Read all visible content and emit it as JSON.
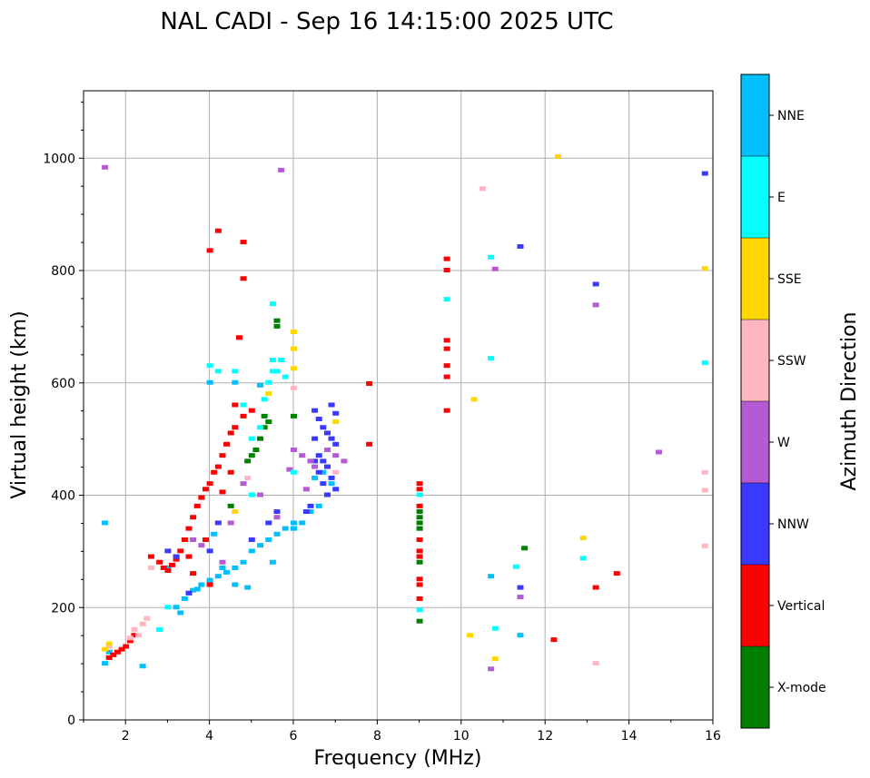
{
  "chart_data": {
    "type": "scatter",
    "title": "NAL CADI - Sep 16 14:15:00 2025 UTC",
    "xlabel": "Frequency (MHz)",
    "ylabel": "Virtual height (km)",
    "xlim": [
      1,
      16
    ],
    "ylim": [
      0,
      1120
    ],
    "xticks": [
      2,
      4,
      6,
      8,
      10,
      12,
      14,
      16
    ],
    "yticks": [
      0,
      200,
      400,
      600,
      800,
      1000
    ],
    "grid": true,
    "colorbar": {
      "label": "Azimuth Direction",
      "categories": [
        "X-mode",
        "Vertical",
        "NNW",
        "W",
        "SSW",
        "SSE",
        "E",
        "NNE"
      ],
      "colors": [
        "#008000",
        "#ff0000",
        "#3a3aff",
        "#b45ad2",
        "#ffb6c1",
        "#ffd700",
        "#00ffff",
        "#00bfff"
      ]
    },
    "series": [
      {
        "name": "NNE",
        "color": "#00bfff",
        "points": [
          [
            1.5,
            350
          ],
          [
            1.5,
            100
          ],
          [
            3.3,
            190
          ],
          [
            3.4,
            215
          ],
          [
            3.5,
            225
          ],
          [
            3.6,
            230
          ],
          [
            3.7,
            232
          ],
          [
            3.8,
            240
          ],
          [
            4.0,
            248
          ],
          [
            4.2,
            255
          ],
          [
            4.4,
            262
          ],
          [
            4.6,
            270
          ],
          [
            4.8,
            280
          ],
          [
            5.0,
            300
          ],
          [
            5.2,
            310
          ],
          [
            5.4,
            320
          ],
          [
            5.6,
            330
          ],
          [
            5.8,
            340
          ],
          [
            6.0,
            340
          ],
          [
            6.2,
            350
          ],
          [
            6.4,
            370
          ],
          [
            6.6,
            380
          ],
          [
            6.5,
            430
          ],
          [
            6.7,
            440
          ],
          [
            6.9,
            420
          ],
          [
            3.2,
            200
          ],
          [
            3.0,
            270
          ],
          [
            4.0,
            600
          ],
          [
            4.1,
            330
          ],
          [
            4.3,
            270
          ],
          [
            4.6,
            240
          ],
          [
            4.9,
            235
          ],
          [
            5.5,
            280
          ],
          [
            6.0,
            350
          ],
          [
            10.7,
            255
          ],
          [
            11.4,
            150
          ],
          [
            4.6,
            600
          ],
          [
            5.2,
            595
          ],
          [
            2.4,
            95
          ],
          [
            1.6,
            120
          ]
        ]
      },
      {
        "name": "Vertical",
        "color": "#ff0000",
        "points": [
          [
            1.6,
            110
          ],
          [
            1.7,
            115
          ],
          [
            1.8,
            120
          ],
          [
            1.9,
            125
          ],
          [
            2.0,
            130
          ],
          [
            2.1,
            140
          ],
          [
            2.2,
            150
          ],
          [
            2.6,
            290
          ],
          [
            2.8,
            280
          ],
          [
            2.9,
            270
          ],
          [
            3.0,
            265
          ],
          [
            3.1,
            275
          ],
          [
            3.2,
            285
          ],
          [
            3.3,
            300
          ],
          [
            3.4,
            320
          ],
          [
            3.5,
            340
          ],
          [
            3.6,
            360
          ],
          [
            3.7,
            380
          ],
          [
            3.8,
            395
          ],
          [
            3.9,
            410
          ],
          [
            4.0,
            420
          ],
          [
            4.1,
            440
          ],
          [
            4.2,
            450
          ],
          [
            4.3,
            470
          ],
          [
            4.4,
            490
          ],
          [
            4.5,
            510
          ],
          [
            4.6,
            520
          ],
          [
            4.8,
            540
          ],
          [
            5.0,
            550
          ],
          [
            3.5,
            290
          ],
          [
            3.6,
            260
          ],
          [
            3.9,
            320
          ],
          [
            4.0,
            240
          ],
          [
            4.3,
            405
          ],
          [
            4.5,
            440
          ],
          [
            4.6,
            560
          ],
          [
            4.2,
            870
          ],
          [
            4.0,
            835
          ],
          [
            4.8,
            850
          ],
          [
            4.8,
            785
          ],
          [
            4.7,
            680
          ],
          [
            7.8,
            598
          ],
          [
            7.8,
            490
          ],
          [
            9.0,
            420
          ],
          [
            9.0,
            410
          ],
          [
            9.0,
            380
          ],
          [
            9.0,
            320
          ],
          [
            9.0,
            300
          ],
          [
            9.0,
            290
          ],
          [
            9.0,
            250
          ],
          [
            9.0,
            240
          ],
          [
            9.0,
            215
          ],
          [
            9.65,
            820
          ],
          [
            9.65,
            800
          ],
          [
            9.65,
            675
          ],
          [
            9.65,
            660
          ],
          [
            9.65,
            630
          ],
          [
            9.65,
            610
          ],
          [
            9.65,
            550
          ],
          [
            12.2,
            142
          ],
          [
            13.2,
            235
          ],
          [
            13.7,
            260
          ]
        ]
      },
      {
        "name": "X-mode",
        "color": "#008000",
        "points": [
          [
            9.0,
            370
          ],
          [
            9.0,
            360
          ],
          [
            9.0,
            350
          ],
          [
            9.0,
            340
          ],
          [
            9.0,
            280
          ],
          [
            9.0,
            175
          ],
          [
            5.0,
            470
          ],
          [
            5.1,
            480
          ],
          [
            5.2,
            500
          ],
          [
            5.3,
            520
          ],
          [
            5.4,
            530
          ],
          [
            5.6,
            700
          ],
          [
            5.6,
            710
          ],
          [
            6.0,
            540
          ],
          [
            4.5,
            380
          ],
          [
            11.5,
            305
          ],
          [
            4.9,
            460
          ],
          [
            5.3,
            540
          ]
        ]
      },
      {
        "name": "NNW",
        "color": "#3a3aff",
        "points": [
          [
            6.5,
            550
          ],
          [
            6.6,
            535
          ],
          [
            6.7,
            520
          ],
          [
            6.8,
            510
          ],
          [
            6.9,
            500
          ],
          [
            7.0,
            490
          ],
          [
            6.5,
            500
          ],
          [
            6.6,
            470
          ],
          [
            6.7,
            460
          ],
          [
            6.8,
            450
          ],
          [
            6.9,
            430
          ],
          [
            7.0,
            410
          ],
          [
            6.5,
            460
          ],
          [
            6.6,
            440
          ],
          [
            6.7,
            420
          ],
          [
            6.8,
            400
          ],
          [
            6.4,
            380
          ],
          [
            6.3,
            370
          ],
          [
            6.9,
            560
          ],
          [
            7.0,
            545
          ],
          [
            3.5,
            225
          ],
          [
            4.0,
            300
          ],
          [
            4.2,
            350
          ],
          [
            5.0,
            320
          ],
          [
            5.4,
            350
          ],
          [
            13.2,
            775
          ],
          [
            15.8,
            972
          ],
          [
            11.4,
            842
          ],
          [
            11.4,
            235
          ],
          [
            3.2,
            290
          ],
          [
            3.0,
            300
          ],
          [
            5.6,
            370
          ]
        ]
      },
      {
        "name": "W",
        "color": "#b45ad2",
        "points": [
          [
            1.5,
            983
          ],
          [
            5.7,
            978
          ],
          [
            6.0,
            480
          ],
          [
            6.2,
            470
          ],
          [
            6.4,
            460
          ],
          [
            6.5,
            450
          ],
          [
            6.8,
            480
          ],
          [
            7.0,
            470
          ],
          [
            7.2,
            460
          ],
          [
            6.3,
            410
          ],
          [
            4.5,
            350
          ],
          [
            4.8,
            420
          ],
          [
            5.2,
            400
          ],
          [
            5.6,
            360
          ],
          [
            3.6,
            320
          ],
          [
            10.8,
            802
          ],
          [
            13.2,
            738
          ],
          [
            14.7,
            476
          ],
          [
            11.4,
            218
          ],
          [
            10.7,
            90
          ],
          [
            3.8,
            310
          ],
          [
            4.3,
            280
          ],
          [
            5.9,
            445
          ]
        ]
      },
      {
        "name": "SSW",
        "color": "#ffb6c1",
        "points": [
          [
            2.2,
            160
          ],
          [
            2.4,
            170
          ],
          [
            2.5,
            180
          ],
          [
            2.3,
            150
          ],
          [
            2.1,
            145
          ],
          [
            1.6,
            130
          ],
          [
            6.0,
            590
          ],
          [
            7.0,
            440
          ],
          [
            10.5,
            945
          ],
          [
            13.2,
            100
          ],
          [
            15.8,
            440
          ],
          [
            15.8,
            408
          ],
          [
            15.8,
            309
          ],
          [
            2.6,
            270
          ],
          [
            4.9,
            430
          ]
        ]
      },
      {
        "name": "SSE",
        "color": "#ffd700",
        "points": [
          [
            1.6,
            135
          ],
          [
            1.5,
            125
          ],
          [
            12.3,
            1002
          ],
          [
            15.8,
            803
          ],
          [
            12.9,
            323
          ],
          [
            10.3,
            570
          ],
          [
            10.2,
            150
          ],
          [
            10.8,
            108
          ],
          [
            6.0,
            690
          ],
          [
            6.0,
            660
          ],
          [
            6.0,
            625
          ],
          [
            4.6,
            370
          ],
          [
            5.4,
            580
          ],
          [
            7.0,
            530
          ]
        ]
      },
      {
        "name": "E",
        "color": "#00ffff",
        "points": [
          [
            5.2,
            520
          ],
          [
            5.3,
            570
          ],
          [
            5.4,
            600
          ],
          [
            5.5,
            620
          ],
          [
            5.5,
            640
          ],
          [
            5.0,
            500
          ],
          [
            4.8,
            560
          ],
          [
            4.6,
            620
          ],
          [
            4.2,
            620
          ],
          [
            5.7,
            640
          ],
          [
            5.6,
            620
          ],
          [
            5.8,
            610
          ],
          [
            5.5,
            740
          ],
          [
            9.65,
            748
          ],
          [
            10.7,
            643
          ],
          [
            10.7,
            823
          ],
          [
            15.8,
            635
          ],
          [
            12.9,
            287
          ],
          [
            11.3,
            272
          ],
          [
            10.8,
            162
          ],
          [
            9.0,
            195
          ],
          [
            9.0,
            400
          ],
          [
            2.8,
            160
          ],
          [
            3.0,
            200
          ],
          [
            5.0,
            400
          ],
          [
            6.0,
            440
          ],
          [
            4.0,
            630
          ]
        ]
      }
    ]
  }
}
